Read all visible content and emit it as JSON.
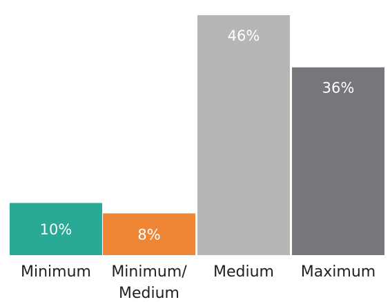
{
  "chart_data": {
    "type": "bar",
    "categories": [
      [
        "Minimum"
      ],
      [
        "Minimum/",
        "Medium"
      ],
      [
        "Medium"
      ],
      [
        "Maximum"
      ]
    ],
    "values": [
      10,
      8,
      46,
      36
    ],
    "data_labels": [
      "10%",
      "8%",
      "46%",
      "36%"
    ],
    "colors": [
      "#2aa997",
      "#ef8636",
      "#b8b5b5",
      "#76777a"
    ],
    "title": "",
    "xlabel": "",
    "ylabel": "",
    "ylim": [
      0,
      46
    ],
    "grid": false,
    "legend": "none"
  }
}
